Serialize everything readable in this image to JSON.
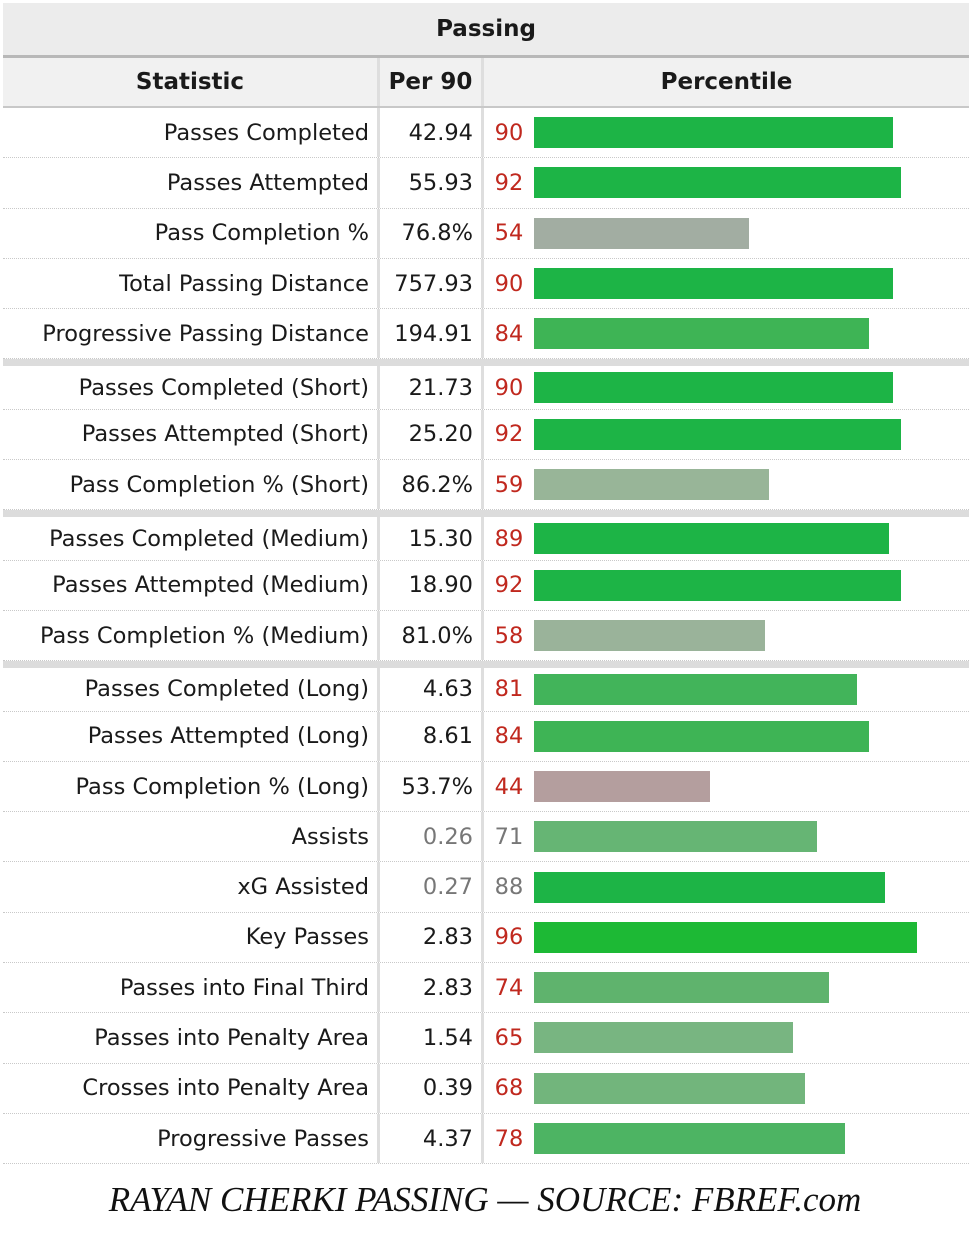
{
  "table": {
    "title": "Passing",
    "headers": {
      "statistic": "Statistic",
      "per90": "Per 90",
      "percentile": "Percentile"
    }
  },
  "chart_data": {
    "type": "bar",
    "title": "Passing",
    "xlabel": "",
    "ylabel": "",
    "xlim": [
      0,
      100
    ],
    "grid": false,
    "legend": "none",
    "categories": [
      "Passes Completed",
      "Passes Attempted",
      "Pass Completion %",
      "Total Passing Distance",
      "Progressive Passing Distance",
      "Passes Completed (Short)",
      "Passes Attempted (Short)",
      "Pass Completion % (Short)",
      "Passes Completed (Medium)",
      "Passes Attempted (Medium)",
      "Pass Completion % (Medium)",
      "Passes Completed (Long)",
      "Passes Attempted (Long)",
      "Pass Completion % (Long)",
      "Assists",
      "xG Assisted",
      "Key Passes",
      "Passes into Final Third",
      "Passes into Penalty Area",
      "Crosses into Penalty Area",
      "Progressive Passes"
    ],
    "per90": [
      "42.94",
      "55.93",
      "76.8%",
      "757.93",
      "194.91",
      "21.73",
      "25.20",
      "86.2%",
      "15.30",
      "18.90",
      "81.0%",
      "4.63",
      "8.61",
      "53.7%",
      "0.26",
      "0.27",
      "2.83",
      "2.83",
      "1.54",
      "0.39",
      "4.37"
    ],
    "values": [
      90,
      92,
      54,
      90,
      84,
      90,
      92,
      59,
      89,
      92,
      58,
      81,
      84,
      44,
      71,
      88,
      96,
      74,
      65,
      68,
      78
    ],
    "bar_colors": [
      "#1db446",
      "#1db446",
      "#a2ada2",
      "#1db446",
      "#3eb455",
      "#1db446",
      "#1db446",
      "#98b598",
      "#1db446",
      "#1db446",
      "#9ab39a",
      "#42b45a",
      "#3eb455",
      "#b49e9e",
      "#66b574",
      "#1db446",
      "#1db935",
      "#5fb36d",
      "#78b581",
      "#72b57c",
      "#4db463"
    ],
    "grey_text_rows": [
      14,
      15
    ],
    "section_breaks": [
      5,
      8,
      11
    ]
  },
  "caption": "RAYAN CHERKI PASSING — SOURCE: FBREF.com"
}
